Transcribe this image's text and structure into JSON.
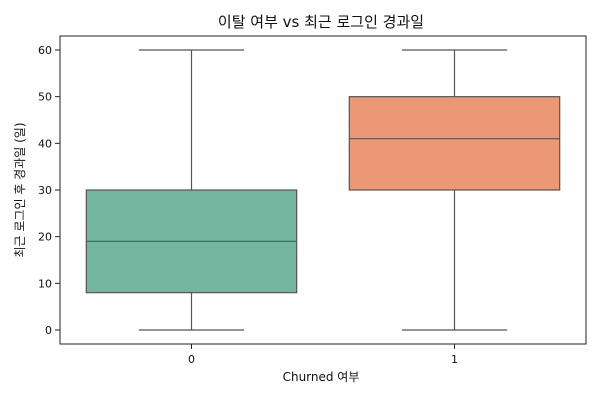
{
  "chart_data": {
    "type": "box",
    "title": "이탈 여부 vs 최근 로그인 경과일",
    "xlabel": "Churned 여부",
    "ylabel": "최근 로그인 후 경과일 (일)",
    "categories": [
      "0",
      "1"
    ],
    "boxes": [
      {
        "category": "0",
        "min": 0,
        "q1": 8,
        "median": 19,
        "q3": 30,
        "max": 60,
        "color": "#73b6a0"
      },
      {
        "category": "1",
        "min": 0,
        "q1": 30,
        "median": 41,
        "q3": 50,
        "max": 60,
        "color": "#ec9874"
      }
    ],
    "yticks": [
      0,
      10,
      20,
      30,
      40,
      50,
      60
    ],
    "ylim": [
      -3,
      63
    ],
    "grid": false,
    "legend": "none"
  }
}
